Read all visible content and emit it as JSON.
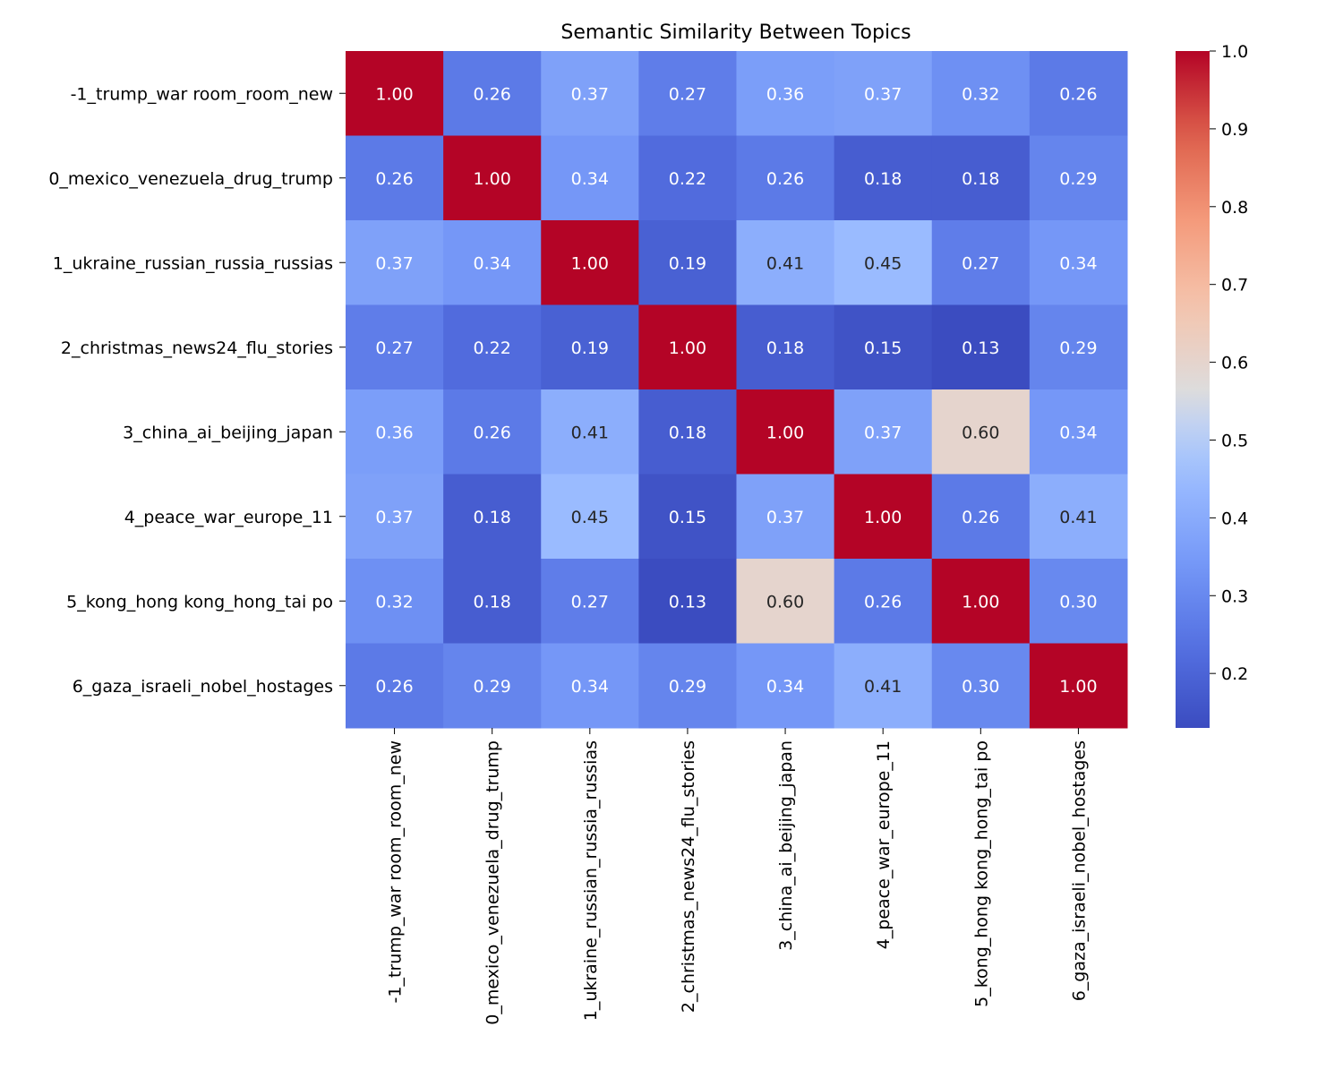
{
  "chart_data": {
    "type": "heatmap",
    "title": "Semantic Similarity Between Topics",
    "xlabel": "",
    "ylabel": "",
    "colormap": "coolwarm",
    "colorbar": {
      "range": [
        0.13,
        1.0
      ],
      "ticks": [
        "0.2",
        "0.3",
        "0.4",
        "0.5",
        "0.6",
        "0.7",
        "0.8",
        "0.9",
        "1.0"
      ]
    },
    "row_labels": [
      "-1_trump_war room_room_new",
      "0_mexico_venezuela_drug_trump",
      "1_ukraine_russian_russia_russias",
      "2_christmas_news24_flu_stories",
      "3_china_ai_beijing_japan",
      "4_peace_war_europe_11",
      "5_kong_hong kong_hong_tai po",
      "6_gaza_israeli_nobel_hostages"
    ],
    "col_labels": [
      "-1_trump_war room_room_new",
      "0_mexico_venezuela_drug_trump",
      "1_ukraine_russian_russia_russias",
      "2_christmas_news24_flu_stories",
      "3_china_ai_beijing_japan",
      "4_peace_war_europe_11",
      "5_kong_hong kong_hong_tai po",
      "6_gaza_israeli_nobel_hostages"
    ],
    "values": [
      [
        1.0,
        0.26,
        0.37,
        0.27,
        0.36,
        0.37,
        0.32,
        0.26
      ],
      [
        0.26,
        1.0,
        0.34,
        0.22,
        0.26,
        0.18,
        0.18,
        0.29
      ],
      [
        0.37,
        0.34,
        1.0,
        0.19,
        0.41,
        0.45,
        0.27,
        0.34
      ],
      [
        0.27,
        0.22,
        0.19,
        1.0,
        0.18,
        0.15,
        0.13,
        0.29
      ],
      [
        0.36,
        0.26,
        0.41,
        0.18,
        1.0,
        0.37,
        0.6,
        0.34
      ],
      [
        0.37,
        0.18,
        0.45,
        0.15,
        0.37,
        1.0,
        0.26,
        0.41
      ],
      [
        0.32,
        0.18,
        0.27,
        0.13,
        0.6,
        0.26,
        1.0,
        0.3
      ],
      [
        0.26,
        0.29,
        0.34,
        0.29,
        0.34,
        0.41,
        0.3,
        1.0
      ]
    ]
  }
}
